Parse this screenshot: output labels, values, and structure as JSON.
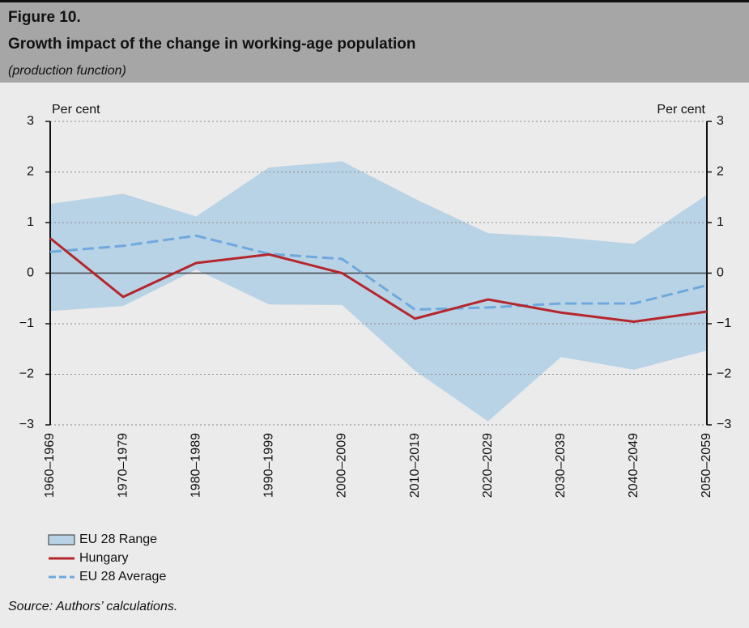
{
  "header": {
    "figure": "Figure 10.",
    "title": "Growth impact of the change in working-age population",
    "subtitle": "(production function)"
  },
  "chart_data": {
    "type": "line",
    "y_label": "Per cent",
    "y2_label": "Per cent",
    "categories": [
      "1960–1969",
      "1970–1979",
      "1980–1989",
      "1990–1999",
      "2000–2009",
      "2010–2019",
      "2020–2029",
      "2030–2039",
      "2040–2049",
      "2050–2059"
    ],
    "ylim": [
      -3,
      3
    ],
    "yticks": [
      {
        "value": -3,
        "label": "−3"
      },
      {
        "value": -2,
        "label": "−2"
      },
      {
        "value": -1,
        "label": "−1"
      },
      0,
      1,
      2,
      3
    ],
    "y2lim": [
      -3,
      3
    ],
    "y2ticks": [
      {
        "value": -3,
        "label": "−3"
      },
      {
        "value": -2,
        "label": "−2"
      },
      {
        "value": -1,
        "label": "−1"
      },
      0,
      1,
      2,
      3
    ],
    "grid": true,
    "series": [
      {
        "name": "EU 28 Range",
        "color": "#b8d3e6",
        "type": "band",
        "upper": [
          1.37,
          1.57,
          1.12,
          2.09,
          2.21,
          1.47,
          0.79,
          0.71,
          0.58,
          1.55
        ],
        "lower": [
          -0.75,
          -0.65,
          0.07,
          -0.62,
          -0.63,
          -1.93,
          -2.93,
          -1.66,
          -1.91,
          -1.53
        ]
      },
      {
        "name": "Hungary",
        "color": "#b5262b",
        "type": "line",
        "values": [
          0.69,
          -0.47,
          0.2,
          0.37,
          0.0,
          -0.9,
          -0.52,
          -0.78,
          -0.96,
          -0.76
        ]
      },
      {
        "name": "EU 28 Average",
        "color": "#6fa8dc",
        "type": "dashed",
        "values": [
          0.42,
          0.54,
          0.74,
          0.38,
          0.28,
          -0.72,
          -0.68,
          -0.6,
          -0.6,
          -0.24
        ]
      }
    ]
  },
  "source": "Source: Authors’ calculations."
}
